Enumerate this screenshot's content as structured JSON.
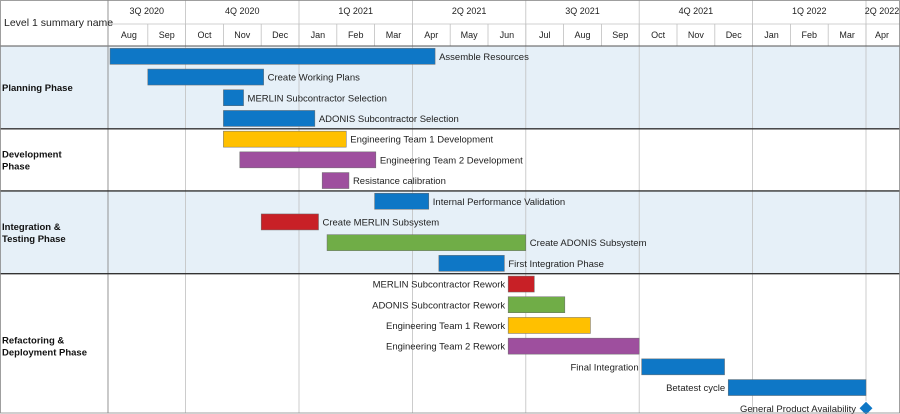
{
  "chart_data": {
    "type": "gantt",
    "header_label": "Level 1 summary name",
    "quarters": [
      {
        "label": "3Q 2020",
        "start": "2020-07-01",
        "end": "2020-10-01"
      },
      {
        "label": "4Q 2020",
        "start": "2020-10-01",
        "end": "2021-01-01"
      },
      {
        "label": "1Q 2021",
        "start": "2021-01-01",
        "end": "2021-04-01"
      },
      {
        "label": "2Q 2021",
        "start": "2021-04-01",
        "end": "2021-07-01"
      },
      {
        "label": "3Q 2021",
        "start": "2021-07-01",
        "end": "2021-10-01"
      },
      {
        "label": "4Q 2021",
        "start": "2021-10-01",
        "end": "2022-01-01"
      },
      {
        "label": "1Q 2022",
        "start": "2022-01-01",
        "end": "2022-04-01"
      },
      {
        "label": "2Q 2022",
        "start": "2022-04-01",
        "end": "2022-07-01"
      }
    ],
    "months": [
      {
        "label": "Aug",
        "start": "2020-08-01"
      },
      {
        "label": "Sep",
        "start": "2020-09-01"
      },
      {
        "label": "Oct",
        "start": "2020-10-01"
      },
      {
        "label": "Nov",
        "start": "2020-11-01"
      },
      {
        "label": "Dec",
        "start": "2020-12-01"
      },
      {
        "label": "Jan",
        "start": "2021-01-01"
      },
      {
        "label": "Feb",
        "start": "2021-02-01"
      },
      {
        "label": "Mar",
        "start": "2021-03-01"
      },
      {
        "label": "Apr",
        "start": "2021-04-01"
      },
      {
        "label": "May",
        "start": "2021-05-01"
      },
      {
        "label": "Jun",
        "start": "2021-06-01"
      },
      {
        "label": "Jul",
        "start": "2021-07-01"
      },
      {
        "label": "Aug",
        "start": "2021-08-01"
      },
      {
        "label": "Sep",
        "start": "2021-09-01"
      },
      {
        "label": "Oct",
        "start": "2021-10-01"
      },
      {
        "label": "Nov",
        "start": "2021-11-01"
      },
      {
        "label": "Dec",
        "start": "2021-12-01"
      },
      {
        "label": "Jan",
        "start": "2022-01-01"
      },
      {
        "label": "Feb",
        "start": "2022-02-01"
      },
      {
        "label": "Mar",
        "start": "2022-03-01"
      },
      {
        "label": "Apr",
        "start": "2022-04-01"
      }
    ],
    "colors": {
      "blue": "#0E77C6",
      "yellow": "#FFC000",
      "purple": "#9E4F9E",
      "red": "#C82026",
      "green": "#70AD47",
      "band_light": "#E6F0F8",
      "border": "#C0C0C0"
    },
    "groups": [
      {
        "name": "Planning Phase",
        "shaded": true,
        "tasks": [
          {
            "name": "Assemble Resources",
            "start": "2020-08-01",
            "end": "2021-04-19",
            "color": "blue",
            "label_side": "right"
          },
          {
            "name": "Create Working Plans",
            "start": "2020-09-01",
            "end": "2020-12-03",
            "color": "blue",
            "label_side": "right"
          },
          {
            "name": "MERLIN Subcontractor Selection",
            "start": "2020-11-01",
            "end": "2020-11-17",
            "color": "blue",
            "label_side": "right"
          },
          {
            "name": "ADONIS Subcontractor Selection",
            "start": "2020-11-01",
            "end": "2021-01-14",
            "color": "blue",
            "label_side": "right"
          }
        ]
      },
      {
        "name": "Development Phase",
        "shaded": false,
        "tasks": [
          {
            "name": "Engineering Team 1 Development",
            "start": "2020-11-01",
            "end": "2021-02-08",
            "color": "yellow",
            "label_side": "right"
          },
          {
            "name": "Engineering Team 2 Development",
            "start": "2020-11-14",
            "end": "2021-03-02",
            "color": "purple",
            "label_side": "right"
          },
          {
            "name": "Resistance calibration",
            "start": "2021-01-20",
            "end": "2021-02-10",
            "color": "purple",
            "label_side": "right"
          }
        ]
      },
      {
        "name": "Integration & Testing Phase",
        "shaded": true,
        "tasks": [
          {
            "name": "Internal Performance Validation",
            "start": "2021-03-01",
            "end": "2021-04-14",
            "color": "blue",
            "label_side": "right"
          },
          {
            "name": "Create MERLIN Subsystem",
            "start": "2020-12-01",
            "end": "2021-01-17",
            "color": "red",
            "label_side": "right"
          },
          {
            "name": "Create ADONIS Subsystem",
            "start": "2021-01-24",
            "end": "2021-07-01",
            "color": "green",
            "label_side": "right"
          },
          {
            "name": "First Integration Phase",
            "start": "2021-04-22",
            "end": "2021-06-14",
            "color": "blue",
            "label_side": "right"
          }
        ]
      },
      {
        "name": "Refactoring & Deployment Phase",
        "shaded": false,
        "tasks": [
          {
            "name": "MERLIN Subcontractor Rework",
            "start": "2021-06-17",
            "end": "2021-07-08",
            "color": "red",
            "label_side": "left"
          },
          {
            "name": "ADONIS Subcontractor Rework",
            "start": "2021-06-17",
            "end": "2021-08-02",
            "color": "green",
            "label_side": "left"
          },
          {
            "name": "Engineering Team 1 Rework",
            "start": "2021-06-17",
            "end": "2021-08-23",
            "color": "yellow",
            "label_side": "left"
          },
          {
            "name": "Engineering Team 2 Rework",
            "start": "2021-06-17",
            "end": "2021-10-01",
            "color": "purple",
            "label_side": "right_cont"
          },
          {
            "name": "Final Integration",
            "start": "2021-10-03",
            "end": "2021-12-09",
            "color": "blue",
            "label_side": "left"
          },
          {
            "name": "Betatest cycle",
            "start": "2021-12-12",
            "end": "2022-04-01",
            "color": "blue",
            "label_side": "left"
          },
          {
            "name": "General Product Availability",
            "start": "2022-04-01",
            "end": null,
            "color": "blue",
            "milestone": true,
            "label_side": "left"
          }
        ]
      }
    ]
  }
}
